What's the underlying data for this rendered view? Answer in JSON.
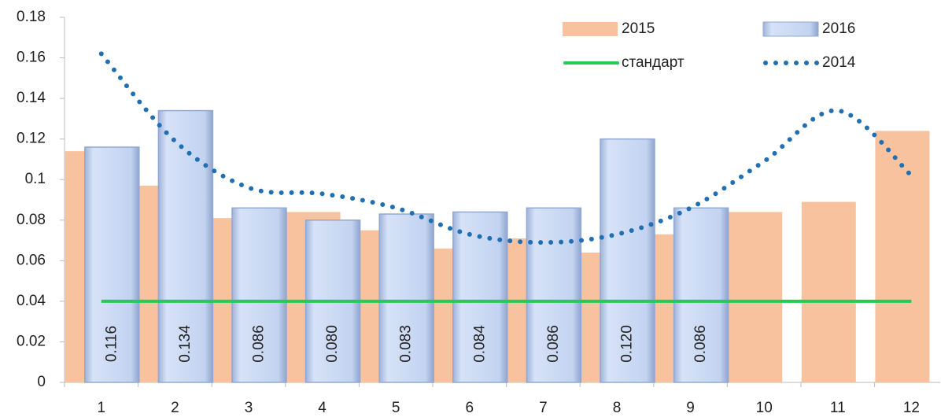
{
  "chart_data": {
    "type": "bar",
    "categories": [
      "1",
      "2",
      "3",
      "4",
      "5",
      "6",
      "7",
      "8",
      "9",
      "10",
      "11",
      "12"
    ],
    "series": [
      {
        "name": "2015",
        "type": "bar",
        "color": "#f9c29e",
        "values": [
          0.114,
          0.097,
          0.081,
          0.084,
          0.075,
          0.066,
          0.071,
          0.064,
          0.073,
          0.084,
          0.089,
          0.124
        ]
      },
      {
        "name": "2016",
        "type": "bar",
        "color": "#c3d3f0",
        "values": [
          0.116,
          0.134,
          0.086,
          0.08,
          0.083,
          0.084,
          0.086,
          0.12,
          0.086,
          null,
          null,
          null
        ],
        "value_labels": [
          "0.116",
          "0.134",
          "0.086",
          "0.080",
          "0.083",
          "0.084",
          "0.086",
          "0.120",
          "0.086",
          null,
          null,
          null
        ]
      },
      {
        "name": "стандарт",
        "type": "line",
        "color": "#22cc55",
        "values": [
          0.04,
          0.04,
          0.04,
          0.04,
          0.04,
          0.04,
          0.04,
          0.04,
          0.04,
          0.04,
          0.04,
          0.04
        ]
      },
      {
        "name": "2014",
        "type": "dotted",
        "color": "#1f6fb2",
        "values": [
          0.162,
          0.119,
          0.096,
          0.093,
          0.086,
          0.073,
          0.069,
          0.073,
          0.086,
          0.109,
          0.134,
          0.102
        ]
      }
    ],
    "ylim": [
      0,
      0.18
    ],
    "yticks": [
      0,
      0.02,
      0.04,
      0.06,
      0.08,
      0.1,
      0.12,
      0.14,
      0.16,
      0.18
    ],
    "legend": "upper right"
  }
}
